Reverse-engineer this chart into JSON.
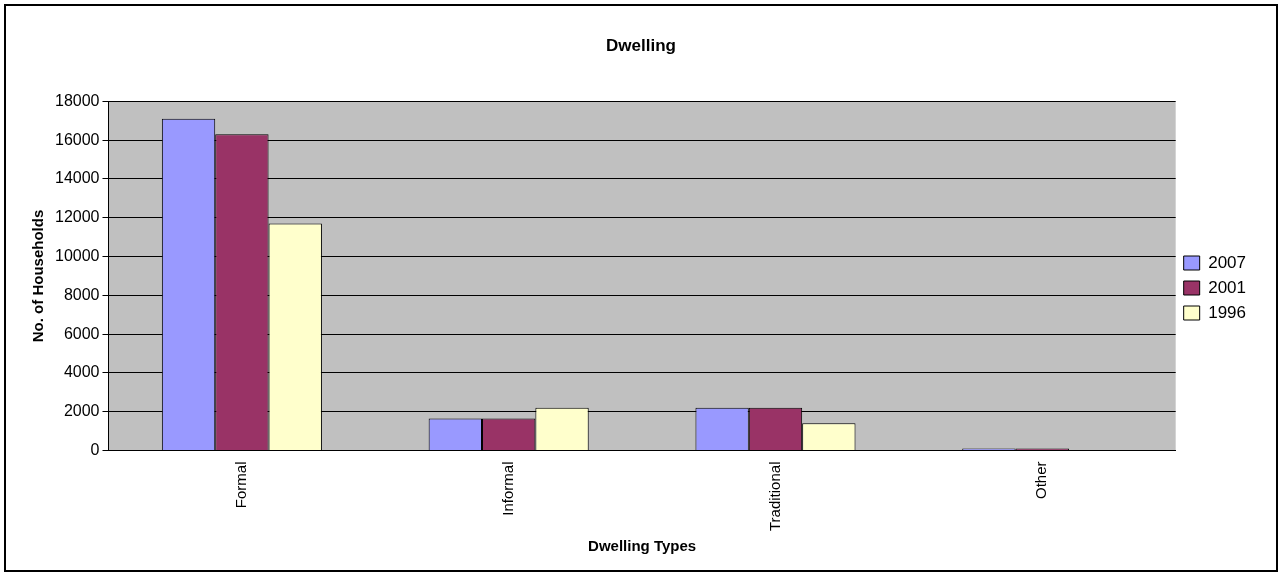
{
  "chart_data": {
    "type": "bar",
    "title": "Dwelling",
    "xlabel": "Dwelling Types",
    "ylabel": "No. of Households",
    "categories": [
      "Formal",
      "Informal",
      "Traditional",
      "Other"
    ],
    "series": [
      {
        "name": "2007",
        "color": "#9999ff",
        "values": [
          17100,
          1650,
          2200,
          100
        ]
      },
      {
        "name": "2001",
        "color": "#993366",
        "values": [
          16300,
          1650,
          2200,
          100
        ]
      },
      {
        "name": "1996",
        "color": "#ffffcc",
        "values": [
          11700,
          2200,
          1400,
          null
        ]
      }
    ],
    "ylim": [
      0,
      18000
    ],
    "yticks": [
      0,
      2000,
      4000,
      6000,
      8000,
      10000,
      12000,
      14000,
      16000,
      18000
    ],
    "grid": "y",
    "legend": "right"
  }
}
